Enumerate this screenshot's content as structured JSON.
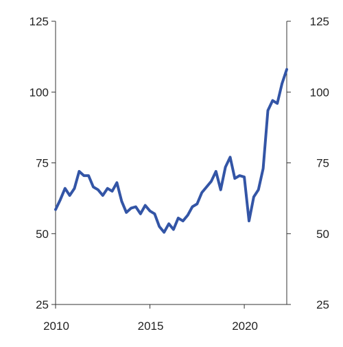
{
  "chart_data": {
    "type": "line",
    "title": "",
    "xlabel": "",
    "ylabel": "",
    "xlim": [
      2010,
      2022.25
    ],
    "ylim": [
      25,
      125
    ],
    "y_ticks": [
      "25",
      "50",
      "75",
      "100",
      "125"
    ],
    "y_tick_values": [
      25,
      50,
      75,
      100,
      125
    ],
    "x_ticks": [
      "2010",
      "2015",
      "2020"
    ],
    "x_tick_values": [
      2010,
      2015,
      2020
    ],
    "grid": false,
    "series_color": "#3355a6",
    "series": [
      {
        "x": [
          2010.0,
          2010.25,
          2010.5,
          2010.75,
          2011.0,
          2011.25,
          2011.5,
          2011.75,
          2012.0,
          2012.25,
          2012.5,
          2012.75,
          2013.0,
          2013.25,
          2013.5,
          2013.75,
          2014.0,
          2014.25,
          2014.5,
          2014.75,
          2015.0,
          2015.25,
          2015.5,
          2015.75,
          2016.0,
          2016.25,
          2016.5,
          2016.75,
          2017.0,
          2017.25,
          2017.5,
          2017.75,
          2018.0,
          2018.25,
          2018.5,
          2018.75,
          2019.0,
          2019.25,
          2019.5,
          2019.75,
          2020.0,
          2020.25,
          2020.5,
          2020.75,
          2021.0,
          2021.25,
          2021.5,
          2021.75,
          2022.0,
          2022.25
        ],
        "values": [
          58.5,
          62,
          66,
          63.5,
          66,
          72,
          70.5,
          70.5,
          66.5,
          65.5,
          63.5,
          66,
          65,
          68,
          61.5,
          57.5,
          59,
          59.5,
          57,
          60,
          58,
          57,
          52.5,
          50.5,
          53.5,
          51.5,
          55.5,
          54.5,
          56.5,
          59.5,
          60.5,
          64.5,
          66.5,
          68.5,
          72,
          65.5,
          73.5,
          77,
          69.5,
          70.5,
          70,
          54.5,
          63,
          65.5,
          73,
          93.5,
          97,
          96,
          103,
          108
        ]
      }
    ]
  }
}
